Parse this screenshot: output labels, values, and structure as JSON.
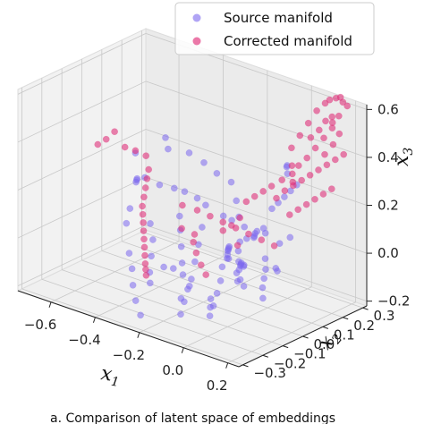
{
  "chart_data": {
    "type": "scatter",
    "projection": "3d",
    "xlabel": "x1",
    "ylabel": "x2",
    "zlabel": "x3",
    "xlabel_parts": {
      "base": "x",
      "sub": "1"
    },
    "ylabel_parts": {
      "base": "x",
      "sub": "2"
    },
    "zlabel_parts": {
      "base": "x",
      "sub": "3"
    },
    "xlim": [
      -0.75,
      0.25
    ],
    "ylim": [
      -0.32,
      0.32
    ],
    "zlim": [
      -0.22,
      0.62
    ],
    "xticks": [
      "−0.6",
      "−0.4",
      "−0.2",
      "0.0",
      "0.2"
    ],
    "xtick_values": [
      -0.6,
      -0.4,
      -0.2,
      0.0,
      0.2
    ],
    "yticks": [
      "−0.3",
      "−0.2",
      "−0.1",
      "0.0",
      "0.1",
      "0.2",
      "0.3"
    ],
    "ytick_values": [
      -0.3,
      -0.2,
      -0.1,
      0.0,
      0.1,
      0.2,
      0.3
    ],
    "zticks": [
      "−0.2",
      "0.0",
      "0.2",
      "0.4",
      "0.6"
    ],
    "ztick_values": [
      -0.2,
      0.0,
      0.2,
      0.4,
      0.6
    ],
    "grid": true,
    "legend_position": "top-right",
    "series": [
      {
        "name": "Source manifold",
        "color": "#7b68ee",
        "opacity": 0.55,
        "points": [
          [
            -0.42,
            -0.05,
            0.25
          ],
          [
            -0.38,
            -0.02,
            0.22
          ],
          [
            -0.35,
            0.02,
            0.2
          ],
          [
            -0.33,
            0.05,
            0.18
          ],
          [
            -0.3,
            0.08,
            0.15
          ],
          [
            -0.28,
            0.1,
            0.12
          ],
          [
            -0.26,
            0.06,
            0.05
          ],
          [
            -0.24,
            0.02,
            0.0
          ],
          [
            -0.22,
            -0.02,
            -0.05
          ],
          [
            -0.2,
            -0.06,
            -0.1
          ],
          [
            -0.18,
            -0.1,
            -0.12
          ],
          [
            -0.16,
            -0.14,
            -0.15
          ],
          [
            -0.14,
            -0.18,
            -0.18
          ],
          [
            -0.12,
            -0.2,
            -0.1
          ],
          [
            -0.1,
            -0.18,
            -0.05
          ],
          [
            -0.35,
            -0.1,
            0.1
          ],
          [
            -0.32,
            -0.12,
            0.05
          ],
          [
            -0.3,
            -0.15,
            0.0
          ],
          [
            -0.28,
            -0.18,
            -0.05
          ],
          [
            -0.26,
            -0.2,
            -0.08
          ],
          [
            -0.45,
            0.1,
            0.3
          ],
          [
            -0.48,
            0.12,
            0.33
          ],
          [
            -0.4,
            0.15,
            0.28
          ],
          [
            -0.36,
            0.18,
            0.24
          ],
          [
            -0.32,
            0.2,
            0.2
          ],
          [
            -0.2,
            0.1,
            0.1
          ],
          [
            -0.18,
            0.12,
            0.08
          ],
          [
            -0.15,
            0.15,
            0.05
          ],
          [
            -0.12,
            0.18,
            0.03
          ],
          [
            -0.1,
            0.2,
            0.02
          ],
          [
            -0.08,
            0.05,
            0.05
          ],
          [
            -0.06,
            0.02,
            0.03
          ],
          [
            -0.04,
            0.0,
            0.0
          ],
          [
            -0.02,
            -0.02,
            -0.02
          ],
          [
            0.0,
            -0.05,
            -0.05
          ],
          [
            0.02,
            0.1,
            0.2
          ],
          [
            0.03,
            0.12,
            0.22
          ],
          [
            0.04,
            0.14,
            0.24
          ],
          [
            0.05,
            0.16,
            0.26
          ],
          [
            0.06,
            0.18,
            0.28
          ],
          [
            0.0,
            0.2,
            0.3
          ],
          [
            -0.02,
            0.22,
            0.32
          ],
          [
            -0.04,
            0.24,
            0.3
          ],
          [
            0.08,
            0.0,
            0.05
          ],
          [
            0.1,
            -0.02,
            0.02
          ],
          [
            0.12,
            -0.05,
            0.0
          ],
          [
            0.14,
            -0.08,
            -0.02
          ],
          [
            0.16,
            -0.1,
            -0.05
          ],
          [
            0.1,
            0.05,
            0.1
          ],
          [
            0.12,
            0.08,
            0.12
          ],
          [
            -0.5,
            0.0,
            0.2
          ],
          [
            -0.52,
            0.02,
            0.18
          ],
          [
            -0.55,
            0.05,
            0.15
          ],
          [
            -0.46,
            -0.08,
            0.12
          ],
          [
            -0.44,
            -0.12,
            0.08
          ],
          [
            -0.3,
            0.25,
            0.15
          ],
          [
            -0.25,
            0.22,
            0.1
          ],
          [
            -0.22,
            0.2,
            0.05
          ],
          [
            -0.16,
            0.05,
            -0.08
          ],
          [
            -0.14,
            0.02,
            -0.12
          ],
          [
            -0.12,
            -0.02,
            -0.15
          ],
          [
            -0.1,
            -0.06,
            -0.18
          ],
          [
            -0.08,
            -0.1,
            -0.2
          ],
          [
            -0.06,
            -0.12,
            -0.15
          ],
          [
            -0.04,
            -0.14,
            -0.1
          ],
          [
            0.05,
            -0.15,
            0.1
          ],
          [
            0.07,
            -0.18,
            0.12
          ],
          [
            0.09,
            -0.2,
            0.15
          ],
          [
            0.11,
            -0.22,
            0.18
          ],
          [
            0.13,
            -0.24,
            0.2
          ],
          [
            0.15,
            -0.26,
            0.22
          ],
          [
            0.17,
            -0.28,
            0.24
          ],
          [
            0.15,
            -0.22,
            0.1
          ],
          [
            0.13,
            -0.18,
            0.05
          ],
          [
            0.11,
            -0.14,
            0.0
          ],
          [
            -0.38,
            0.08,
            0.05
          ],
          [
            -0.34,
            0.04,
            0.02
          ],
          [
            -0.3,
            0.0,
            -0.02
          ],
          [
            -0.26,
            -0.04,
            -0.06
          ],
          [
            -0.22,
            -0.08,
            -0.08
          ],
          [
            -0.4,
            -0.15,
            -0.02
          ],
          [
            -0.36,
            -0.18,
            -0.06
          ],
          [
            -0.32,
            -0.22,
            -0.1
          ],
          [
            -0.28,
            -0.25,
            -0.14
          ],
          [
            -0.24,
            -0.27,
            -0.18
          ],
          [
            0.0,
            0.08,
            0.12
          ],
          [
            -0.02,
            0.06,
            0.1
          ],
          [
            -0.04,
            0.04,
            0.08
          ],
          [
            -0.06,
            0.1,
            0.06
          ],
          [
            -0.08,
            0.12,
            0.04
          ],
          [
            0.04,
            -0.08,
            0.04
          ],
          [
            0.06,
            -0.1,
            0.06
          ],
          [
            0.08,
            -0.12,
            0.08
          ],
          [
            0.02,
            -0.04,
            0.02
          ],
          [
            0.0,
            -0.02,
            0.0
          ],
          [
            -0.58,
            0.08,
            0.25
          ],
          [
            -0.2,
            -0.15,
            -0.02
          ],
          [
            -0.18,
            -0.22,
            0.02
          ],
          [
            0.18,
            -0.05,
            0.05
          ],
          [
            0.2,
            -0.08,
            0.08
          ]
        ]
      },
      {
        "name": "Corrected manifold",
        "color": "#e0307a",
        "opacity": 0.6,
        "points": [
          [
            -0.62,
            0.02,
            0.35
          ],
          [
            -0.64,
            0.0,
            0.32
          ],
          [
            -0.66,
            -0.02,
            0.3
          ],
          [
            -0.6,
            0.05,
            0.28
          ],
          [
            -0.58,
            0.08,
            0.26
          ],
          [
            -0.55,
            0.1,
            0.24
          ],
          [
            -0.52,
            0.08,
            0.2
          ],
          [
            -0.5,
            0.05,
            0.18
          ],
          [
            -0.48,
            0.02,
            0.16
          ],
          [
            -0.46,
            -0.01,
            0.14
          ],
          [
            -0.44,
            -0.04,
            0.12
          ],
          [
            -0.42,
            -0.06,
            0.1
          ],
          [
            -0.4,
            -0.08,
            0.08
          ],
          [
            -0.38,
            -0.1,
            0.06
          ],
          [
            -0.36,
            -0.12,
            0.04
          ],
          [
            -0.34,
            -0.14,
            0.02
          ],
          [
            -0.32,
            -0.16,
            0.0
          ],
          [
            -0.3,
            -0.18,
            -0.02
          ],
          [
            -0.28,
            -0.2,
            -0.03
          ],
          [
            -0.26,
            -0.22,
            -0.04
          ],
          [
            -0.34,
            0.05,
            0.12
          ],
          [
            -0.3,
            0.08,
            0.1
          ],
          [
            -0.26,
            0.1,
            0.08
          ],
          [
            -0.22,
            0.12,
            0.06
          ],
          [
            -0.18,
            0.14,
            0.04
          ],
          [
            -0.14,
            0.16,
            0.02
          ],
          [
            -0.1,
            0.18,
            0.0
          ],
          [
            -0.06,
            0.2,
            -0.02
          ],
          [
            -0.2,
            -0.05,
            0.05
          ],
          [
            -0.16,
            -0.08,
            0.03
          ],
          [
            0.0,
            0.22,
            0.4
          ],
          [
            0.02,
            0.24,
            0.45
          ],
          [
            0.04,
            0.26,
            0.5
          ],
          [
            0.06,
            0.28,
            0.55
          ],
          [
            0.08,
            0.3,
            0.58
          ],
          [
            0.1,
            0.3,
            0.6
          ],
          [
            0.12,
            0.31,
            0.61
          ],
          [
            0.14,
            0.31,
            0.62
          ],
          [
            0.16,
            0.3,
            0.61
          ],
          [
            0.18,
            0.3,
            0.6
          ],
          [
            0.05,
            0.2,
            0.35
          ],
          [
            0.07,
            0.22,
            0.38
          ],
          [
            0.09,
            0.24,
            0.42
          ],
          [
            0.11,
            0.26,
            0.46
          ],
          [
            0.13,
            0.28,
            0.5
          ],
          [
            0.04,
            0.1,
            0.25
          ],
          [
            0.06,
            0.12,
            0.28
          ],
          [
            0.08,
            0.14,
            0.3
          ],
          [
            0.1,
            0.16,
            0.32
          ],
          [
            0.12,
            0.18,
            0.34
          ],
          [
            0.14,
            0.2,
            0.36
          ],
          [
            0.16,
            0.22,
            0.38
          ],
          [
            0.18,
            0.24,
            0.4
          ],
          [
            0.2,
            0.26,
            0.42
          ],
          [
            0.2,
            0.2,
            0.3
          ],
          [
            0.18,
            0.18,
            0.28
          ],
          [
            0.16,
            0.16,
            0.26
          ],
          [
            0.14,
            0.14,
            0.24
          ],
          [
            0.12,
            0.12,
            0.22
          ],
          [
            0.1,
            0.1,
            0.2
          ],
          [
            0.02,
            0.15,
            0.3
          ],
          [
            0.0,
            0.12,
            0.28
          ],
          [
            -0.02,
            0.1,
            0.26
          ],
          [
            -0.04,
            0.08,
            0.24
          ],
          [
            -0.06,
            0.06,
            0.22
          ],
          [
            -0.08,
            0.05,
            0.15
          ],
          [
            -0.1,
            0.03,
            0.12
          ],
          [
            -0.12,
            0.01,
            0.1
          ],
          [
            0.06,
            0.25,
            0.45
          ],
          [
            0.08,
            0.27,
            0.48
          ],
          [
            0.1,
            0.28,
            0.52
          ],
          [
            0.12,
            0.29,
            0.54
          ],
          [
            0.02,
            0.2,
            0.34
          ],
          [
            0.04,
            0.18,
            0.32
          ],
          [
            0.06,
            0.16,
            0.3
          ],
          [
            0.16,
            0.28,
            0.56
          ],
          [
            0.14,
            0.27,
            0.53
          ],
          [
            0.18,
            0.26,
            0.5
          ],
          [
            0.17,
            0.24,
            0.46
          ],
          [
            0.15,
            0.22,
            0.42
          ],
          [
            -0.24,
            0.0,
            0.05
          ],
          [
            -0.28,
            -0.02,
            0.07
          ],
          [
            -0.12,
            -0.1,
            0.0
          ],
          [
            -0.08,
            -0.12,
            -0.02
          ],
          [
            0.0,
            -0.05,
            0.1
          ]
        ]
      }
    ]
  },
  "caption": "a. Comparison of latent space of embeddings"
}
